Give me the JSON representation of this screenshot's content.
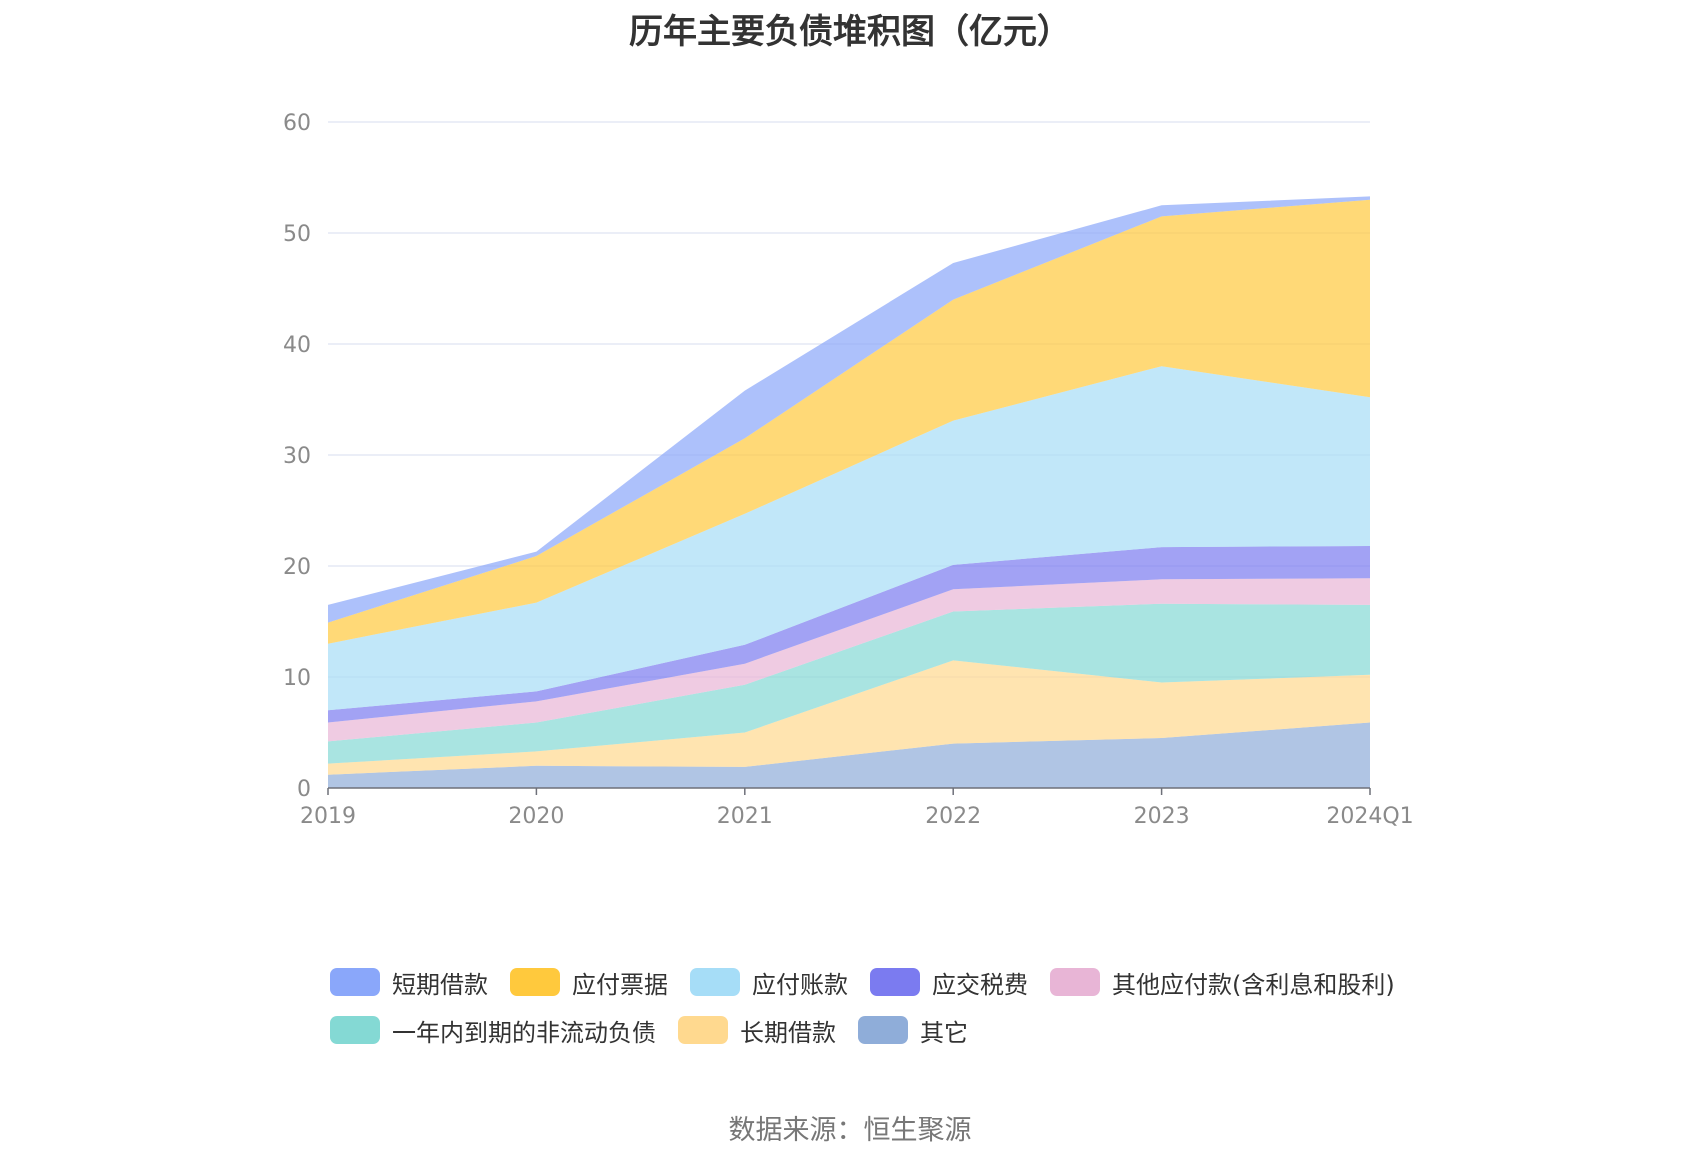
{
  "title": "历年主要负债堆积图（亿元）",
  "source": "数据来源：恒生聚源",
  "chart_data": {
    "type": "area",
    "stacked": true,
    "title": "历年主要负债堆积图（亿元）",
    "xlabel": "",
    "ylabel": "",
    "categories": [
      "2019",
      "2020",
      "2021",
      "2022",
      "2023",
      "2024Q1"
    ],
    "ylim": [
      0,
      60
    ],
    "yticks": [
      0,
      10,
      20,
      30,
      40,
      50,
      60
    ],
    "grid": true,
    "legend_position": "bottom",
    "series": [
      {
        "name": "其它",
        "color": "#8fadd9",
        "values": [
          1.2,
          2.0,
          1.9,
          4.0,
          4.5,
          5.9
        ]
      },
      {
        "name": "长期借款",
        "color": "#ffd98f",
        "values": [
          1.0,
          1.3,
          3.1,
          7.5,
          5.0,
          4.3
        ]
      },
      {
        "name": "一年内到期的非流动负债",
        "color": "#84d9d4",
        "values": [
          2.0,
          2.6,
          4.3,
          4.4,
          7.1,
          6.3
        ]
      },
      {
        "name": "其他应付款(含利息和股利)",
        "color": "#e8b5d6",
        "values": [
          1.7,
          1.9,
          1.9,
          2.0,
          2.2,
          2.4
        ]
      },
      {
        "name": "应交税费",
        "color": "#7b7bf0",
        "values": [
          1.1,
          0.9,
          1.7,
          2.2,
          2.9,
          2.9
        ]
      },
      {
        "name": "应付账款",
        "color": "#a6ddf7",
        "values": [
          6.0,
          8.0,
          11.8,
          13.0,
          16.3,
          13.4
        ]
      },
      {
        "name": "应付票据",
        "color": "#ffc93d",
        "values": [
          1.9,
          4.2,
          6.8,
          10.9,
          13.5,
          17.8
        ]
      },
      {
        "name": "短期借款",
        "color": "#8aa7fa",
        "values": [
          1.6,
          0.4,
          4.3,
          3.3,
          1.0,
          0.3
        ]
      }
    ]
  },
  "legend": {
    "rows": [
      [
        {
          "label": "短期借款",
          "color": "#8aa7fa"
        },
        {
          "label": "应付票据",
          "color": "#ffc93d"
        },
        {
          "label": "应付账款",
          "color": "#a6ddf7"
        },
        {
          "label": "应交税费",
          "color": "#7b7bf0"
        },
        {
          "label": "其他应付款(含利息和股利)",
          "color": "#e8b5d6"
        }
      ],
      [
        {
          "label": "一年内到期的非流动负债",
          "color": "#84d9d4"
        },
        {
          "label": "长期借款",
          "color": "#ffd98f"
        },
        {
          "label": "其它",
          "color": "#8fadd9"
        }
      ]
    ]
  }
}
